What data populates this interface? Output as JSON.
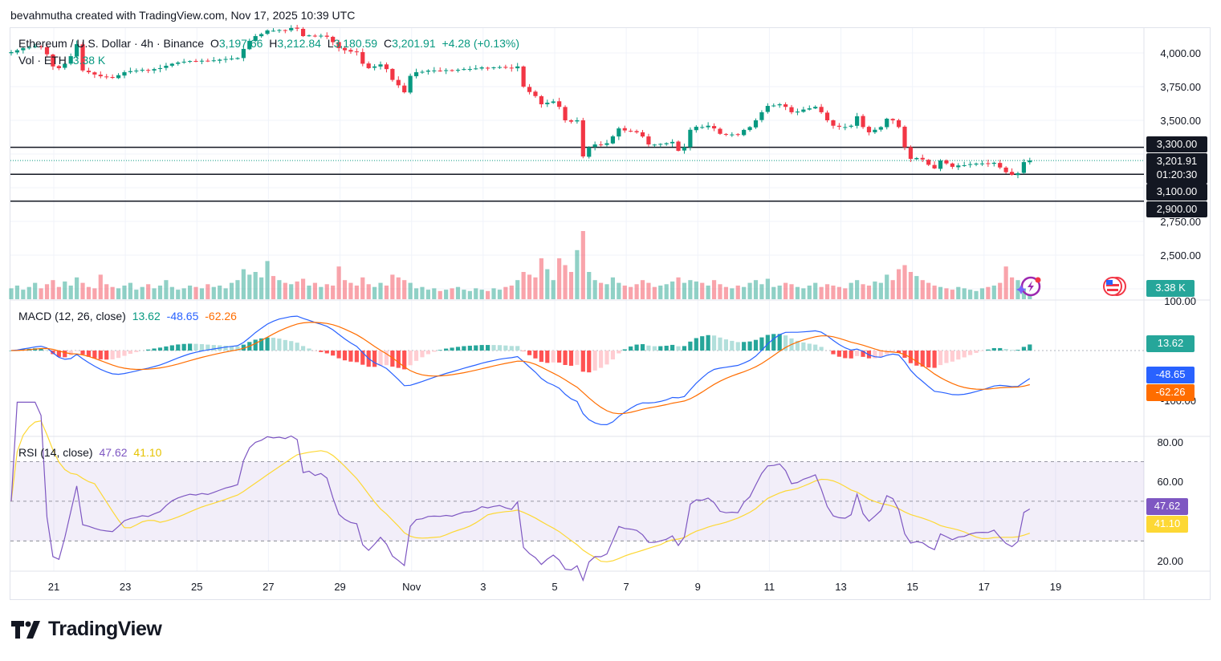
{
  "credit": "bevahmutha created with TradingView.com, Nov 17, 2025 10:39 UTC",
  "legend": {
    "symbol": "Ethereum / U.S. Dollar · 4h · Binance",
    "o_label": "O",
    "o": "3,197.66",
    "h_label": "H",
    "h": "3,212.84",
    "l_label": "L",
    "l": "3,180.59",
    "c_label": "C",
    "c": "3,201.91",
    "change": "+4.28 (+0.13%)",
    "vol_label": "Vol · ETH",
    "vol": "3.38 K"
  },
  "macd_legend": {
    "title": "MACD (12, 26, close)",
    "hist": "13.62",
    "macd": "-48.65",
    "signal": "-62.26"
  },
  "rsi_legend": {
    "title": "RSI (14, close)",
    "rsi": "47.62",
    "ma": "41.10"
  },
  "logo": "TradingView",
  "colors": {
    "up": "#089981",
    "down": "#f23645",
    "macd": "#2962ff",
    "signal": "#ff6d00",
    "rsi": "#7e57c2",
    "rsi_ma": "#fdd835",
    "badge_dark": "#131722"
  },
  "chart_data": {
    "type": "candlestick",
    "interval": "4h",
    "price_axis": {
      "ticks": [
        "4,000.00",
        "3,750.00",
        "3,500.00",
        "2,750.00",
        "2,500.00"
      ],
      "tick_values": [
        4000,
        3750,
        3500,
        2750,
        2500
      ]
    },
    "horizontal_lines": [
      3300,
      3100,
      2900
    ],
    "price_badges": [
      {
        "value": 3300,
        "text": "3,300.00"
      },
      {
        "value": 3201.91,
        "text": "3,201.91",
        "sub": "01:20:30"
      },
      {
        "value": 3100,
        "text": "3,100.00"
      },
      {
        "value": 2900,
        "text": "2,900.00"
      }
    ],
    "volume_badge": "3.38 K",
    "x_ticks": [
      "21",
      "23",
      "25",
      "27",
      "29",
      "Nov",
      "3",
      "5",
      "7",
      "9",
      "11",
      "13",
      "15",
      "17",
      "19"
    ],
    "close": [
      4006,
      4020,
      4036,
      4040,
      4048,
      4045,
      3990,
      3900,
      3887,
      3920,
      3976,
      4065,
      3870,
      3857,
      3840,
      3827,
      3820,
      3815,
      3835,
      3857,
      3865,
      3869,
      3875,
      3872,
      3880,
      3887,
      3905,
      3920,
      3929,
      3935,
      3940,
      3938,
      3942,
      3940,
      3945,
      3950,
      3955,
      3958,
      3962,
      4030,
      4090,
      4125,
      4140,
      4167,
      4165,
      4170,
      4168,
      4185,
      4180,
      4125,
      4130,
      4122,
      4128,
      4120,
      4080,
      4036,
      4020,
      4010,
      4006,
      3920,
      3887,
      3900,
      3915,
      3880,
      3800,
      3760,
      3708,
      3830,
      3857,
      3860,
      3869,
      3870,
      3869,
      3872,
      3869,
      3875,
      3880,
      3881,
      3885,
      3893,
      3890,
      3893,
      3895,
      3890,
      3887,
      3900,
      3750,
      3710,
      3680,
      3619,
      3631,
      3640,
      3600,
      3500,
      3490,
      3500,
      3232,
      3300,
      3321,
      3320,
      3330,
      3381,
      3440,
      3425,
      3420,
      3411,
      3380,
      3321,
      3320,
      3325,
      3330,
      3340,
      3274,
      3300,
      3430,
      3452,
      3450,
      3460,
      3440,
      3400,
      3393,
      3395,
      3393,
      3429,
      3450,
      3500,
      3560,
      3607,
      3610,
      3619,
      3600,
      3560,
      3565,
      3580,
      3589,
      3600,
      3560,
      3500,
      3460,
      3452,
      3450,
      3460,
      3530,
      3450,
      3411,
      3430,
      3450,
      3512,
      3500,
      3450,
      3300,
      3214,
      3220,
      3210,
      3170,
      3143,
      3202,
      3180,
      3155,
      3165,
      3167,
      3175,
      3179,
      3180,
      3179,
      3185,
      3150,
      3115,
      3095,
      3107,
      3190,
      3201.91
    ],
    "volume_k": [
      8,
      10,
      7,
      9,
      12,
      8,
      11,
      14,
      9,
      13,
      10,
      16,
      12,
      9,
      8,
      18,
      11,
      9,
      8,
      10,
      12,
      7,
      9,
      11,
      8,
      10,
      14,
      9,
      7,
      8,
      10,
      9,
      8,
      11,
      9,
      10,
      8,
      12,
      14,
      22,
      18,
      20,
      16,
      28,
      17,
      14,
      12,
      11,
      13,
      15,
      10,
      12,
      9,
      11,
      10,
      24,
      14,
      12,
      10,
      16,
      11,
      9,
      12,
      10,
      18,
      16,
      14,
      12,
      8,
      9,
      7,
      8,
      6,
      7,
      8,
      9,
      7,
      6,
      8,
      7,
      6,
      8,
      7,
      9,
      10,
      14,
      20,
      18,
      16,
      30,
      22,
      14,
      30,
      25,
      20,
      36,
      50,
      20,
      14,
      12,
      11,
      16,
      12,
      10,
      9,
      11,
      14,
      12,
      9,
      10,
      11,
      13,
      16,
      12,
      14,
      13,
      12,
      10,
      14,
      11,
      9,
      8,
      10,
      9,
      12,
      14,
      11,
      15,
      9,
      10,
      12,
      11,
      9,
      8,
      10,
      12,
      9,
      11,
      10,
      9,
      8,
      12,
      14,
      11,
      10,
      13,
      12,
      18,
      14,
      22,
      25,
      20,
      17,
      14,
      12,
      10,
      9,
      8,
      7,
      9,
      8,
      7,
      6,
      8,
      9,
      10,
      12,
      24,
      16,
      14,
      8,
      3.38
    ],
    "macd_axis": {
      "ticks": [
        "100.00",
        "-100.00"
      ],
      "tick_values": [
        100,
        -100
      ]
    },
    "rsi_axis": {
      "ticks": [
        "80.00",
        "60.00",
        "20.00"
      ],
      "tick_values": [
        80,
        60,
        20
      ],
      "bands": [
        70,
        50,
        30
      ]
    }
  }
}
